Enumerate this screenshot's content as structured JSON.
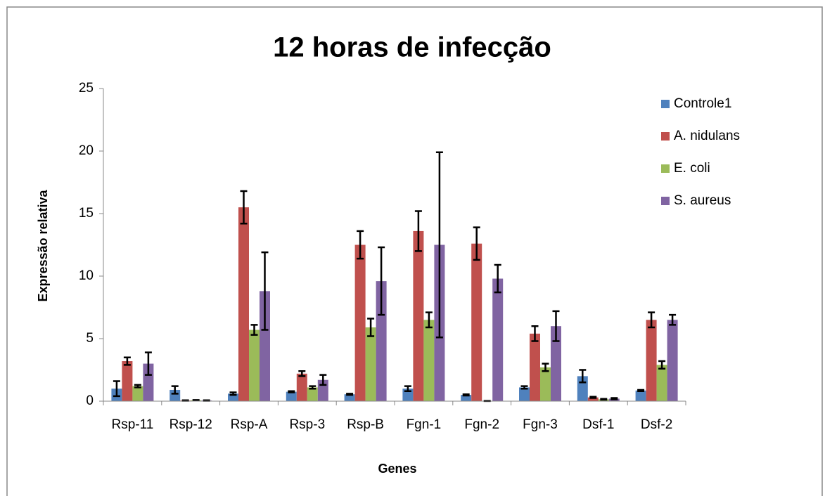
{
  "chart_data": {
    "type": "bar",
    "title": "12 horas de infecção",
    "xlabel": "Genes",
    "ylabel": "Expressão relativa",
    "categories": [
      "Rsp-11",
      "Rsp-12",
      "Rsp-A",
      "Rsp-3",
      "Rsp-B",
      "Fgn-1",
      "Fgn-2",
      "Fgn-3",
      "Dsf-1",
      "Dsf-2"
    ],
    "series": [
      {
        "name": "Controle1",
        "color": "#4f81bd",
        "values": [
          1.0,
          0.9,
          0.6,
          0.75,
          0.55,
          1.0,
          0.5,
          1.1,
          2.0,
          0.85
        ],
        "errors": [
          0.6,
          0.3,
          0.1,
          0.05,
          0.05,
          0.2,
          0.05,
          0.1,
          0.5,
          0.05
        ]
      },
      {
        "name": "A. nidulans",
        "color": "#c0504d",
        "values": [
          3.2,
          0.05,
          15.5,
          2.2,
          12.5,
          13.6,
          12.6,
          5.4,
          0.3,
          6.5
        ],
        "errors": [
          0.3,
          0.02,
          1.3,
          0.2,
          1.1,
          1.6,
          1.3,
          0.6,
          0.05,
          0.6
        ]
      },
      {
        "name": "E. coli",
        "color": "#9bbb59",
        "values": [
          1.2,
          0.07,
          5.7,
          1.1,
          5.9,
          6.5,
          0.02,
          2.7,
          0.15,
          2.9
        ],
        "errors": [
          0.1,
          0.02,
          0.4,
          0.1,
          0.7,
          0.6,
          0.01,
          0.3,
          0.03,
          0.3
        ]
      },
      {
        "name": "S. aureus",
        "color": "#8064a2",
        "values": [
          3.0,
          0.05,
          8.8,
          1.7,
          9.6,
          12.5,
          9.8,
          6.0,
          0.2,
          6.5
        ],
        "errors": [
          0.9,
          0.02,
          3.1,
          0.4,
          2.7,
          7.4,
          1.1,
          1.2,
          0.05,
          0.4
        ]
      }
    ],
    "ylim": [
      0,
      25
    ],
    "yticks": [
      0,
      5,
      10,
      15,
      20,
      25
    ],
    "legend": "right",
    "grid": false
  }
}
